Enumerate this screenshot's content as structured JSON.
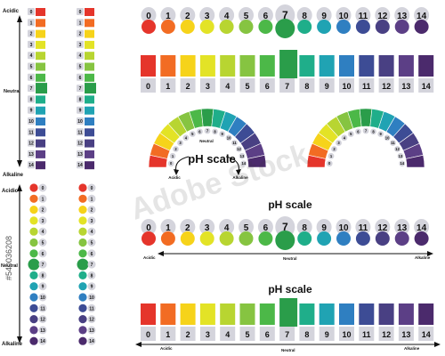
{
  "ph_values": [
    "0",
    "1",
    "2",
    "3",
    "4",
    "5",
    "6",
    "7",
    "8",
    "9",
    "10",
    "11",
    "12",
    "13",
    "14"
  ],
  "colors": [
    "#e5352b",
    "#f26c23",
    "#f6d31a",
    "#e3e326",
    "#b8d531",
    "#86c441",
    "#4cb848",
    "#2a9d4a",
    "#1fae8a",
    "#20a3b3",
    "#2f7fc1",
    "#3d4c95",
    "#494083",
    "#5c3f86",
    "#4b2a6c"
  ],
  "labels": {
    "acidic": "Acidic",
    "neutral": "Neutral",
    "alkaline": "Alkaline",
    "ph_scale": "pH scale"
  },
  "watermark": {
    "text": "Adobe Stock",
    "id": "#540036208"
  }
}
